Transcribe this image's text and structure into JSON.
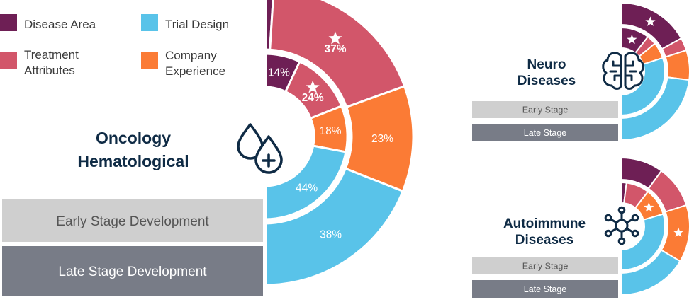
{
  "colors": {
    "disease_area": "#6E1F55",
    "treatment_attributes": "#D2566A",
    "trial_design": "#59C3E9",
    "company_experience": "#FB7B35",
    "early_bar": "#CFCFCF",
    "late_bar": "#787C87",
    "title": "#0F2B45"
  },
  "legend": [
    {
      "label_lines": [
        "Disease Area"
      ],
      "color_key": "disease_area"
    },
    {
      "label_lines": [
        "Trial Design"
      ],
      "color_key": "trial_design"
    },
    {
      "label_lines": [
        "Treatment",
        "Attributes"
      ],
      "color_key": "treatment_attributes"
    },
    {
      "label_lines": [
        "Company",
        "Experience"
      ],
      "color_key": "company_experience"
    }
  ],
  "chart_data": [
    {
      "type": "donut",
      "title_lines": [
        "Oncology",
        "Hematological"
      ],
      "icon": "droplets-plus-icon",
      "bars": {
        "early": "Early Stage Development",
        "late": "Late Stage Development"
      },
      "rings": [
        {
          "name": "Early Stage",
          "segments": [
            {
              "category": "Disease Area",
              "value": 14,
              "label": "14%",
              "star": false
            },
            {
              "category": "Treatment Attributes",
              "value": 24,
              "label": "24%",
              "star": true
            },
            {
              "category": "Company Experience",
              "value": 18,
              "label": "18%",
              "star": false
            },
            {
              "category": "Trial Design",
              "value": 44,
              "label": "44%",
              "star": false
            }
          ]
        },
        {
          "name": "Late Stage",
          "segments": [
            {
              "category": "Disease Area",
              "value": 2,
              "label": "",
              "star": false
            },
            {
              "category": "Treatment Attributes",
              "value": 37,
              "label": "37%",
              "star": true
            },
            {
              "category": "Company Experience",
              "value": 23,
              "label": "23%",
              "star": false
            },
            {
              "category": "Trial Design",
              "value": 38,
              "label": "38%",
              "star": false
            }
          ]
        }
      ]
    },
    {
      "type": "donut",
      "title_lines": [
        "Neuro",
        "Diseases"
      ],
      "icon": "brain-icon",
      "bars": {
        "early": "Early Stage",
        "late": "Late Stage"
      },
      "rings": [
        {
          "name": "Early Stage",
          "segments": [
            {
              "category": "Disease Area",
              "value": 21,
              "label": "",
              "star": true
            },
            {
              "category": "Treatment Attributes",
              "value": 7,
              "label": "",
              "star": false
            },
            {
              "category": "Company Experience",
              "value": 12,
              "label": "",
              "star": false
            },
            {
              "category": "Trial Design",
              "value": 60,
              "label": "",
              "star": false
            }
          ]
        },
        {
          "name": "Late Stage",
          "segments": [
            {
              "category": "Disease Area",
              "value": 34,
              "label": "",
              "star": true
            },
            {
              "category": "Treatment Attributes",
              "value": 6,
              "label": "",
              "star": false
            },
            {
              "category": "Company Experience",
              "value": 14,
              "label": "",
              "star": false
            },
            {
              "category": "Trial Design",
              "value": 46,
              "label": "",
              "star": false
            }
          ]
        }
      ]
    },
    {
      "type": "donut",
      "title_lines": [
        "Autoimmune",
        "Diseases"
      ],
      "icon": "network-icon",
      "bars": {
        "early": "Early Stage",
        "late": "Late Stage"
      },
      "rings": [
        {
          "name": "Early Stage",
          "segments": [
            {
              "category": "Disease Area",
              "value": 4,
              "label": "",
              "star": false
            },
            {
              "category": "Treatment Attributes",
              "value": 17,
              "label": "",
              "star": false
            },
            {
              "category": "Company Experience",
              "value": 20,
              "label": "",
              "star": true
            },
            {
              "category": "Trial Design",
              "value": 59,
              "label": "",
              "star": false
            }
          ]
        },
        {
          "name": "Late Stage",
          "segments": [
            {
              "category": "Disease Area",
              "value": 20,
              "label": "",
              "star": false
            },
            {
              "category": "Treatment Attributes",
              "value": 20,
              "label": "",
              "star": false
            },
            {
              "category": "Company Experience",
              "value": 27,
              "label": "",
              "star": true
            },
            {
              "category": "Trial Design",
              "value": 33,
              "label": "",
              "star": false
            }
          ]
        }
      ]
    }
  ]
}
